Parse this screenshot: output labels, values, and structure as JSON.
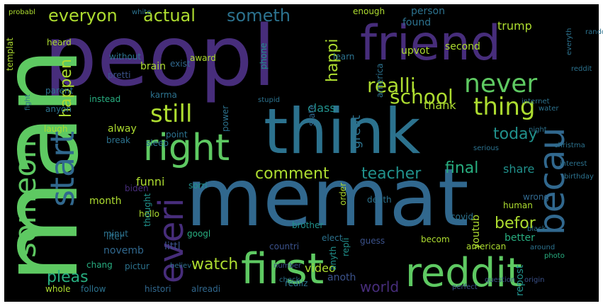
{
  "palette": {
    "background": "#000000",
    "frame": "#ffffff",
    "purple": "#472d7b",
    "purple2": "#482374",
    "blue": "#3b528b",
    "steel": "#2c728e",
    "teal": "#21918c",
    "green": "#28ae80",
    "lightgreen": "#5ec962",
    "yellowgreen": "#addc30",
    "yellow": "#dde318",
    "darkblue": "#31688e"
  },
  "words": [
    "peopl",
    "man",
    "memat",
    "think",
    "friend",
    "reddit",
    "first",
    "right",
    "becau",
    "someon",
    "start",
    "everi",
    "never",
    "thing",
    "still",
    "realli",
    "school",
    "everyon",
    "actual",
    "someth",
    "happen",
    "comment",
    "teacher",
    "final",
    "today",
    "befor",
    "watch",
    "pleas",
    "world",
    "funni",
    "share",
    "thank",
    "video",
    "trump",
    "person",
    "found",
    "happi",
    "class",
    "great",
    "american",
    "repost",
    "youtub",
    "better",
    "wrong",
    "human",
    "becom",
    "littl",
    "novemb",
    "pictur",
    "chang",
    "month",
    "brain",
    "award",
    "karma",
    "instead",
    "alway",
    "laugh",
    "upvot",
    "america",
    "second",
    "enough",
    "hello",
    "thought",
    "minut",
    "liter",
    "googl",
    "countri",
    "brother",
    "elect",
    "anoth",
    "realiz",
    "alreadi",
    "histori",
    "follow",
    "whole",
    "parent",
    "anyon",
    "templat",
    "heard",
    "without",
    "pretti",
    "sorri",
    "power",
    "phone",
    "state",
    "point",
    "sleep",
    "break",
    "biden",
    "death",
    "order",
    "learn",
    "exist",
    "guess",
    "repli",
    "anyth",
    "covid",
    "photo",
    "reddit",
    "christma",
    "birthday",
    "interest",
    "perfect",
    "question",
    "origin",
    "probabl",
    "white",
    "random",
    "everyth",
    "internet",
    "water",
    "serious",
    "night",
    "fight",
    "stupid",
    "believ",
    "black",
    "around",
    "number",
    "check",
    "later",
    "child",
    "singl",
    "enjoy",
    "black"
  ]
}
